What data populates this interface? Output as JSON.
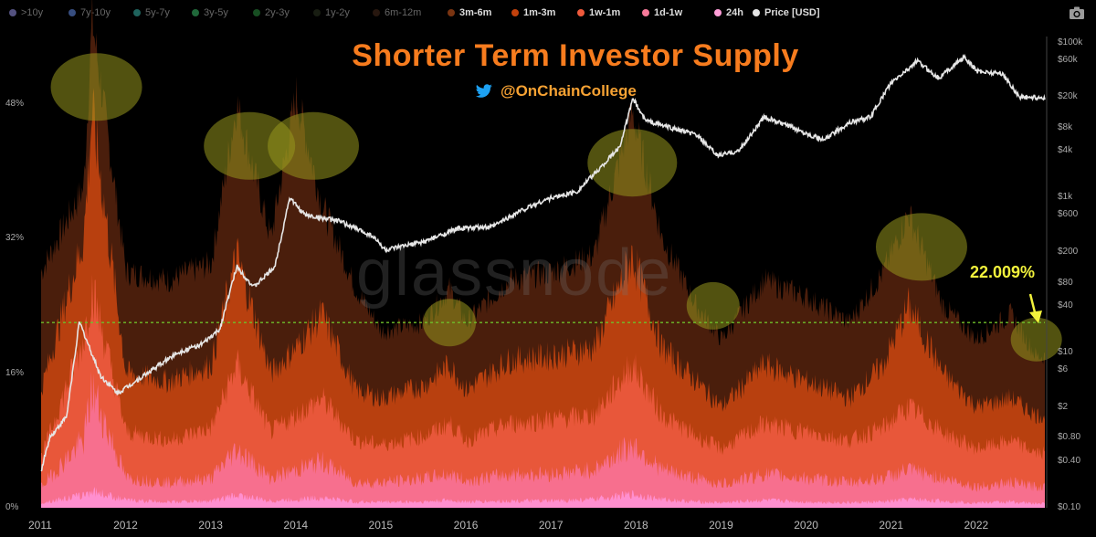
{
  "legend": [
    {
      "label": ">10y",
      "color": "#a8a3ff",
      "icon": "dot"
    },
    {
      "label": "7y-10y",
      "color": "#6e9bff",
      "icon": "dot"
    },
    {
      "label": "5y-7y",
      "color": "#3ec6b9",
      "icon": "dot"
    },
    {
      "label": "3y-5y",
      "color": "#3fcf73",
      "icon": "dot"
    },
    {
      "label": "2y-3y",
      "color": "#2e9c44",
      "icon": "dot"
    },
    {
      "label": "1y-2y",
      "color": "#2f3a24",
      "icon": "dot"
    },
    {
      "label": "6m-12m",
      "color": "#4d2e1d",
      "icon": "dot"
    },
    {
      "label": "3m-6m",
      "color": "#7a3411",
      "icon": "dot"
    },
    {
      "label": "1m-3m",
      "color": "#c2410c",
      "icon": "dot"
    },
    {
      "label": "1w-1m",
      "color": "#ef5a3c",
      "icon": "dot"
    },
    {
      "label": "1d-1w",
      "color": "#f77a9a",
      "icon": "dot"
    },
    {
      "label": "24h",
      "color": "#ff9ed8",
      "icon": "dot"
    },
    {
      "label": "Price [USD]",
      "color": "#e6e6e6",
      "icon": "dot"
    }
  ],
  "camera_icon": "camera-icon",
  "title": "Shorter Term Investor Supply",
  "twitter_handle": "@OnChainCollege",
  "twitter_icon": "twitter-bird-icon",
  "watermark": "glassnode",
  "callout": "22.009%",
  "colors": {
    "title": "#f77c1e",
    "handle": "#f7a233",
    "callout": "#f2f23c",
    "reference_line": "#6fbf2a",
    "highlight": "#8a8a1a"
  },
  "chart_data": {
    "type": "area",
    "stacked": true,
    "x_ticks": [
      "2011",
      "2012",
      "2013",
      "2014",
      "2015",
      "2016",
      "2017",
      "2018",
      "2019",
      "2020",
      "2021",
      "2022"
    ],
    "y_left_ticks": [
      "0%",
      "16%",
      "32%",
      "48%"
    ],
    "y_left_range": [
      0,
      56
    ],
    "y_right_ticks": [
      "$0.10",
      "$0.40",
      "$0.80",
      "$2",
      "$6",
      "$10",
      "$40",
      "$80",
      "$200",
      "$600",
      "$1k",
      "$4k",
      "$8k",
      "$20k",
      "$60k",
      "$100k"
    ],
    "y_right_scale": "log",
    "y_right_range": [
      0.1,
      120000
    ],
    "reference_line_pct": 22.009,
    "x": [
      2011.0,
      2011.5,
      2011.6,
      2012.0,
      2012.5,
      2013.0,
      2013.3,
      2013.7,
      2014.0,
      2014.3,
      2014.7,
      2015.0,
      2015.5,
      2015.8,
      2016.0,
      2016.5,
      2017.0,
      2017.5,
      2017.95,
      2018.3,
      2018.7,
      2019.0,
      2019.5,
      2020.0,
      2020.5,
      2020.9,
      2021.2,
      2021.6,
      2022.0,
      2022.4,
      2022.7
    ],
    "series": [
      {
        "name": "24h",
        "values": [
          0.6,
          1.5,
          2.0,
          0.9,
          0.7,
          0.8,
          1.5,
          0.8,
          1.0,
          1.2,
          0.7,
          0.7,
          0.7,
          0.9,
          0.7,
          0.8,
          0.8,
          1.0,
          1.6,
          1.0,
          0.7,
          0.6,
          0.9,
          0.7,
          0.6,
          0.7,
          1.0,
          0.8,
          0.6,
          0.7,
          0.5
        ]
      },
      {
        "name": "1d-1w",
        "values": [
          2.5,
          8.0,
          14.0,
          3.5,
          3.0,
          3.5,
          7.0,
          3.5,
          4.5,
          5.5,
          3.0,
          3.0,
          3.5,
          4.0,
          3.2,
          4.0,
          4.0,
          4.5,
          7.5,
          4.5,
          3.5,
          2.8,
          4.0,
          3.5,
          3.0,
          3.5,
          4.5,
          3.5,
          2.5,
          3.0,
          2.5
        ]
      },
      {
        "name": "1w-1m",
        "values": [
          6.0,
          20.0,
          26.0,
          9.0,
          8.0,
          9.5,
          17.0,
          9.0,
          11.0,
          13.0,
          8.0,
          7.5,
          8.5,
          10.0,
          8.0,
          10.0,
          10.5,
          11.0,
          17.0,
          11.0,
          8.5,
          7.0,
          10.0,
          9.0,
          8.0,
          9.5,
          12.0,
          9.0,
          7.0,
          8.0,
          6.5
        ]
      },
      {
        "name": "1m-3m",
        "values": [
          14.0,
          32.0,
          47.0,
          16.0,
          15.0,
          17.0,
          30.0,
          16.0,
          19.0,
          23.0,
          14.0,
          13.0,
          14.5,
          17.0,
          14.0,
          17.5,
          18.0,
          19.0,
          30.0,
          19.0,
          15.0,
          12.0,
          17.0,
          15.0,
          13.0,
          17.0,
          24.0,
          16.0,
          12.0,
          13.0,
          11.0
        ]
      },
      {
        "name": "3m-6m",
        "values": [
          28.0,
          38.0,
          58.0,
          28.0,
          27.0,
          29.0,
          48.0,
          32.0,
          49.0,
          36.0,
          26.0,
          21.0,
          22.0,
          26.0,
          22.0,
          27.0,
          28.0,
          30.0,
          47.0,
          32.0,
          24.0,
          20.0,
          27.0,
          25.0,
          22.0,
          28.0,
          35.0,
          24.0,
          20.0,
          23.0,
          18.0
        ]
      }
    ],
    "price": {
      "name": "Price [USD]",
      "x": [
        2011.0,
        2011.1,
        2011.3,
        2011.45,
        2011.7,
        2011.9,
        2012.2,
        2012.6,
        2012.9,
        2013.1,
        2013.3,
        2013.5,
        2013.75,
        2013.92,
        2014.1,
        2014.5,
        2014.9,
        2015.05,
        2015.5,
        2015.9,
        2016.3,
        2016.6,
        2016.95,
        2017.3,
        2017.6,
        2017.8,
        2017.96,
        2018.1,
        2018.4,
        2018.7,
        2018.95,
        2019.2,
        2019.5,
        2019.9,
        2020.2,
        2020.5,
        2020.75,
        2020.98,
        2021.3,
        2021.55,
        2021.85,
        2022.0,
        2022.3,
        2022.5,
        2022.75
      ],
      "values": [
        0.3,
        0.8,
        1.5,
        25,
        5,
        3,
        5,
        10,
        13,
        20,
        130,
        70,
        130,
        1000,
        600,
        500,
        320,
        210,
        270,
        400,
        420,
        650,
        960,
        1200,
        2600,
        4500,
        19000,
        10000,
        8000,
        6500,
        3500,
        4000,
        11000,
        7500,
        5500,
        9300,
        11000,
        29000,
        58000,
        35000,
        65000,
        43000,
        40000,
        20000,
        19500
      ]
    }
  }
}
